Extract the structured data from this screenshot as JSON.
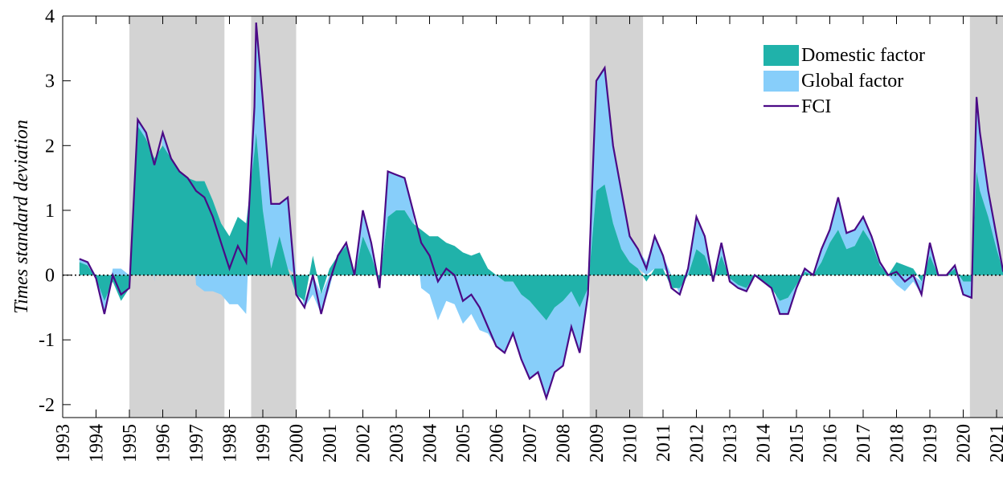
{
  "chart_data": {
    "type": "stacked-area-line",
    "y_label": "Times standard deviation",
    "x": [
      1993.5,
      1993.75,
      1994,
      1994.25,
      1994.5,
      1994.75,
      1995,
      1995.25,
      1995.5,
      1995.75,
      1996,
      1996.25,
      1996.5,
      1996.75,
      1997,
      1997.25,
      1997.5,
      1997.75,
      1998,
      1998.25,
      1998.5,
      1998.75,
      1998.8,
      1999,
      1999.25,
      1999.5,
      1999.75,
      2000,
      2000.25,
      2000.5,
      2000.75,
      2001,
      2001.25,
      2001.5,
      2001.75,
      2002,
      2002.25,
      2002.5,
      2002.75,
      2003,
      2003.25,
      2003.5,
      2003.75,
      2004,
      2004.25,
      2004.5,
      2004.75,
      2005,
      2005.25,
      2005.5,
      2005.75,
      2006,
      2006.25,
      2006.5,
      2006.75,
      2007,
      2007.25,
      2007.5,
      2007.75,
      2008,
      2008.25,
      2008.5,
      2008.75,
      2009,
      2009.25,
      2009.5,
      2009.75,
      2010,
      2010.25,
      2010.5,
      2010.75,
      2011,
      2011.25,
      2011.5,
      2011.75,
      2012,
      2012.25,
      2012.5,
      2012.75,
      2013,
      2013.25,
      2013.5,
      2013.75,
      2014,
      2014.25,
      2014.5,
      2014.75,
      2015,
      2015.25,
      2015.5,
      2015.75,
      2016,
      2016.25,
      2016.5,
      2016.75,
      2017,
      2017.25,
      2017.5,
      2017.75,
      2018,
      2018.25,
      2018.5,
      2018.75,
      2019,
      2019.25,
      2019.5,
      2019.75,
      2020,
      2020.25,
      2020.4,
      2020.5,
      2020.75,
      2021,
      2021.2
    ],
    "series": [
      {
        "name": "Domestic factor",
        "kind": "area",
        "color": "#20b2aa",
        "values": [
          0.2,
          0.15,
          -0.05,
          -0.4,
          -0.1,
          -0.4,
          -0.2,
          2.3,
          2.1,
          1.8,
          2.0,
          1.8,
          1.6,
          1.5,
          1.45,
          1.45,
          1.15,
          0.8,
          0.6,
          0.9,
          0.8,
          1.9,
          2.2,
          1.0,
          0.1,
          0.6,
          0.1,
          -0.3,
          -0.4,
          0.3,
          -0.3,
          0.1,
          0.3,
          0.45,
          0.0,
          0.6,
          0.3,
          -0.1,
          0.9,
          1.0,
          1.0,
          0.8,
          0.7,
          0.6,
          0.6,
          0.5,
          0.45,
          0.35,
          0.3,
          0.35,
          0.1,
          0.0,
          -0.1,
          -0.1,
          -0.3,
          -0.4,
          -0.55,
          -0.7,
          -0.5,
          -0.4,
          -0.25,
          -0.5,
          -0.2,
          1.3,
          1.4,
          0.8,
          0.4,
          0.2,
          0.1,
          -0.1,
          0.1,
          0.1,
          -0.2,
          -0.2,
          0.0,
          0.4,
          0.3,
          -0.05,
          0.3,
          -0.05,
          -0.15,
          -0.2,
          0.0,
          -0.1,
          -0.2,
          -0.4,
          -0.35,
          -0.15,
          0.05,
          0.0,
          0.2,
          0.5,
          0.7,
          0.4,
          0.45,
          0.7,
          0.5,
          0.15,
          0.0,
          0.2,
          0.15,
          0.1,
          -0.1,
          0.3,
          0.0,
          0.0,
          0.1,
          -0.1,
          -0.1,
          1.6,
          1.3,
          0.9,
          0.4,
          0.05
        ]
      },
      {
        "name": "Global factor",
        "kind": "area",
        "color": "#87cefa",
        "values": [
          0.05,
          0.05,
          0,
          -0.2,
          0.1,
          0.1,
          0.0,
          0.1,
          0.1,
          -0.1,
          0.2,
          0.0,
          0.0,
          0.0,
          -0.15,
          -0.25,
          -0.25,
          -0.3,
          -0.45,
          -0.45,
          -0.6,
          0.7,
          1.7,
          1.7,
          1.0,
          0.5,
          1.1,
          0.0,
          -0.1,
          -0.3,
          -0.3,
          -0.2,
          0.0,
          0.05,
          0.0,
          0.4,
          0.2,
          -0.1,
          0.7,
          0.55,
          0.5,
          0.2,
          -0.2,
          -0.3,
          -0.7,
          -0.4,
          -0.45,
          -0.75,
          -0.6,
          -0.85,
          -0.9,
          -1.1,
          -1.1,
          -0.8,
          -1.0,
          -1.2,
          -0.95,
          -1.2,
          -1.0,
          -1.0,
          -0.55,
          -0.7,
          -0.1,
          1.7,
          1.8,
          1.2,
          0.9,
          0.4,
          0.3,
          0.2,
          0.5,
          0.2,
          0.0,
          -0.1,
          0.1,
          0.5,
          0.3,
          -0.05,
          0.2,
          -0.05,
          -0.05,
          -0.05,
          0.0,
          0.0,
          0.0,
          -0.2,
          -0.25,
          -0.05,
          0.05,
          0.0,
          0.2,
          0.2,
          0.5,
          0.25,
          0.25,
          0.2,
          0.1,
          0.05,
          0.0,
          -0.15,
          -0.25,
          -0.1,
          -0.2,
          0.2,
          0.0,
          0.0,
          0.05,
          -0.2,
          -0.25,
          1.15,
          0.9,
          0.4,
          0.2,
          0.0
        ]
      },
      {
        "name": "FCI",
        "kind": "line",
        "color": "#4b0a86",
        "values": [
          0.25,
          0.2,
          -0.05,
          -0.6,
          0.0,
          -0.3,
          -0.2,
          2.4,
          2.2,
          1.7,
          2.2,
          1.8,
          1.6,
          1.5,
          1.3,
          1.2,
          0.9,
          0.5,
          0.1,
          0.45,
          0.2,
          2.6,
          3.9,
          2.7,
          1.1,
          1.1,
          1.2,
          -0.3,
          -0.5,
          0.0,
          -0.6,
          -0.1,
          0.3,
          0.5,
          0.0,
          1.0,
          0.5,
          -0.2,
          1.6,
          1.55,
          1.5,
          1.0,
          0.5,
          0.3,
          -0.1,
          0.1,
          0.0,
          -0.4,
          -0.3,
          -0.5,
          -0.8,
          -1.1,
          -1.2,
          -0.9,
          -1.3,
          -1.6,
          -1.5,
          -1.9,
          -1.5,
          -1.4,
          -0.8,
          -1.2,
          -0.3,
          3.0,
          3.2,
          2.0,
          1.3,
          0.6,
          0.4,
          0.1,
          0.6,
          0.3,
          -0.2,
          -0.3,
          0.1,
          0.9,
          0.6,
          -0.1,
          0.5,
          -0.1,
          -0.2,
          -0.25,
          0.0,
          -0.1,
          -0.2,
          -0.6,
          -0.6,
          -0.2,
          0.1,
          0.0,
          0.4,
          0.7,
          1.2,
          0.65,
          0.7,
          0.9,
          0.6,
          0.2,
          0.0,
          0.05,
          -0.1,
          0.0,
          -0.3,
          0.5,
          0.0,
          0.0,
          0.15,
          -0.3,
          -0.35,
          2.75,
          2.2,
          1.3,
          0.6,
          0.05
        ]
      }
    ],
    "shaded_periods": [
      [
        1995.0,
        1997.85
      ],
      [
        1998.65,
        2000.0
      ],
      [
        2008.8,
        2010.4
      ],
      [
        2020.2,
        2021.2
      ]
    ],
    "shade_color": "#d3d3d3",
    "xlim": [
      1993,
      2021.2
    ],
    "xticks": [
      1993,
      1994,
      1995,
      1996,
      1997,
      1998,
      1999,
      2000,
      2001,
      2002,
      2003,
      2004,
      2005,
      2006,
      2007,
      2008,
      2009,
      2010,
      2011,
      2012,
      2013,
      2014,
      2015,
      2016,
      2017,
      2018,
      2019,
      2020,
      2021
    ],
    "ylim": [
      -2.2,
      4
    ],
    "yticks": [
      -2,
      -1,
      0,
      1,
      2,
      3,
      4
    ],
    "zero_line": true,
    "legend": "upper right"
  }
}
